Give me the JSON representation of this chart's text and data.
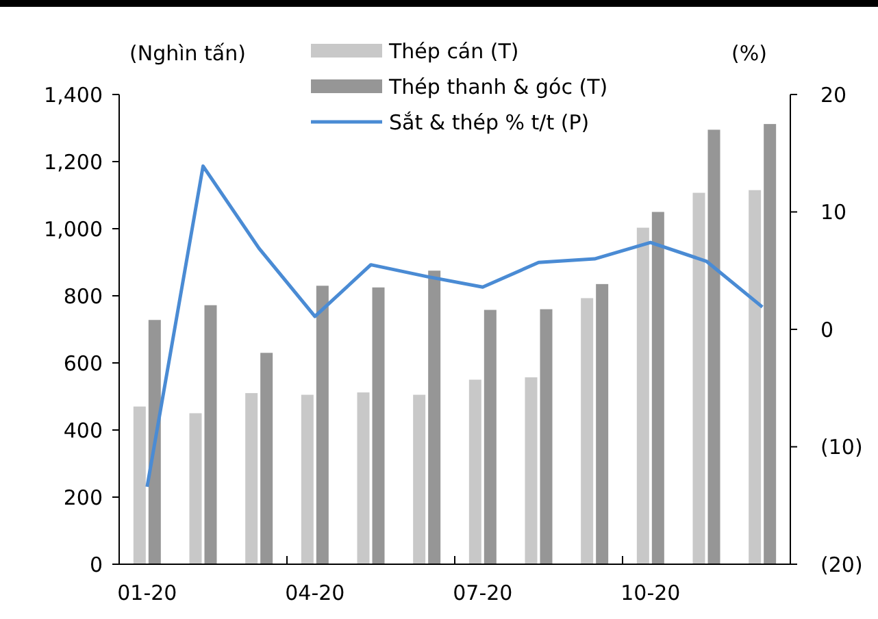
{
  "chart_data": {
    "type": "bar",
    "ylabel": "(Nghìn tấn)",
    "y2label": "(%)",
    "categories": [
      "01-20",
      null,
      null,
      "04-20",
      null,
      null,
      "07-20",
      null,
      null,
      "10-20",
      null,
      null
    ],
    "series": [
      {
        "name": "Thép cán (T)",
        "color": "#c8c8c8",
        "values": [
          470,
          450,
          510,
          505,
          512,
          505,
          550,
          557,
          793,
          1003,
          1107,
          1115
        ]
      },
      {
        "name": "Thép thanh & góc (T)",
        "color": "#969696",
        "values": [
          728,
          772,
          630,
          830,
          825,
          875,
          758,
          760,
          835,
          1050,
          1295,
          1312
        ]
      },
      {
        "name": "Sắt & thép % t/t (P)",
        "type": "line",
        "axis": "y2",
        "color": "#4a8bd4",
        "values": [
          -13.4,
          13.9,
          6.9,
          1.1,
          5.5,
          4.5,
          3.6,
          5.7,
          6.0,
          7.4,
          5.8,
          1.9
        ]
      }
    ],
    "ylim": [
      0,
      1400
    ],
    "yticks": [
      {
        "value": 0,
        "label": "0"
      },
      {
        "value": 200,
        "label": "200"
      },
      {
        "value": 400,
        "label": "400"
      },
      {
        "value": 600,
        "label": "600"
      },
      {
        "value": 800,
        "label": "800"
      },
      {
        "value": 1000,
        "label": "1,000"
      },
      {
        "value": 1200,
        "label": "1,200"
      },
      {
        "value": 1400,
        "label": "1,400"
      }
    ],
    "y2lim": [
      -20,
      20
    ],
    "y2ticks": [
      {
        "value": -20,
        "label": "(20)"
      },
      {
        "value": -10,
        "label": "(10)"
      },
      {
        "value": 0,
        "label": "0"
      },
      {
        "value": 10,
        "label": "10"
      },
      {
        "value": 20,
        "label": "20"
      }
    ],
    "grid": false,
    "legend": "top",
    "marker": "none",
    "line_style": "solid"
  }
}
